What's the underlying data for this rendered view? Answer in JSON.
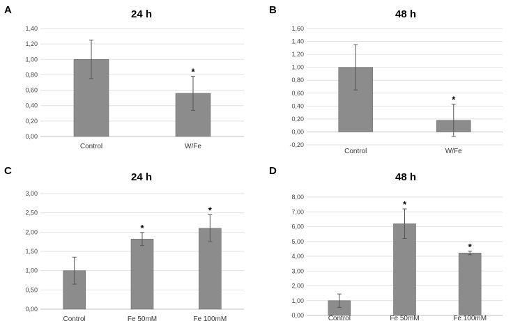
{
  "chart_data": [
    {
      "panel": "A",
      "type": "bar",
      "title": "24 h",
      "categories": [
        "Control",
        "W/Fe"
      ],
      "values": [
        1.0,
        0.56
      ],
      "errors": [
        0.25,
        0.22
      ],
      "significance": [
        "",
        "*"
      ],
      "yticks": [
        "0,00",
        "0,20",
        "0,40",
        "0,60",
        "0,80",
        "1,00",
        "1,20",
        "1,40"
      ],
      "ylim": [
        0,
        1.4
      ],
      "xlabel": "",
      "ylabel": "",
      "grid": true
    },
    {
      "panel": "B",
      "type": "bar",
      "title": "48 h",
      "categories": [
        "Control",
        "W/Fe"
      ],
      "values": [
        1.0,
        0.18
      ],
      "errors": [
        0.35,
        0.25
      ],
      "significance": [
        "",
        "*"
      ],
      "yticks": [
        "-0,20",
        "0,00",
        "0,20",
        "0,40",
        "0,60",
        "0,80",
        "1,00",
        "1,20",
        "1,40",
        "1,60"
      ],
      "ylim": [
        -0.2,
        1.6
      ],
      "xlabel": "",
      "ylabel": "",
      "grid": true
    },
    {
      "panel": "C",
      "type": "bar",
      "title": "24 h",
      "categories": [
        "Control",
        "Fe 50mM",
        "Fe 100mM"
      ],
      "values": [
        1.0,
        1.82,
        2.1
      ],
      "errors": [
        0.35,
        0.17,
        0.35
      ],
      "significance": [
        "",
        "*",
        "*"
      ],
      "yticks": [
        "0,00",
        "0,50",
        "1,00",
        "1,50",
        "2,00",
        "2,50",
        "3,00"
      ],
      "ylim": [
        0,
        3.0
      ],
      "xlabel": "",
      "ylabel": "",
      "grid": true
    },
    {
      "panel": "D",
      "type": "bar",
      "title": "48 h",
      "categories": [
        "Control",
        "Fe 50mM",
        "Fe 100mM"
      ],
      "values": [
        1.0,
        6.2,
        4.22
      ],
      "errors": [
        0.45,
        1.0,
        0.12
      ],
      "significance": [
        "",
        "*",
        "*"
      ],
      "yticks": [
        "0,00",
        "1,00",
        "2,00",
        "3,00",
        "4,00",
        "5,00",
        "6,00",
        "7,00",
        "8,00"
      ],
      "ylim": [
        0,
        8.0
      ],
      "xlabel": "",
      "ylabel": "",
      "grid": true
    }
  ]
}
